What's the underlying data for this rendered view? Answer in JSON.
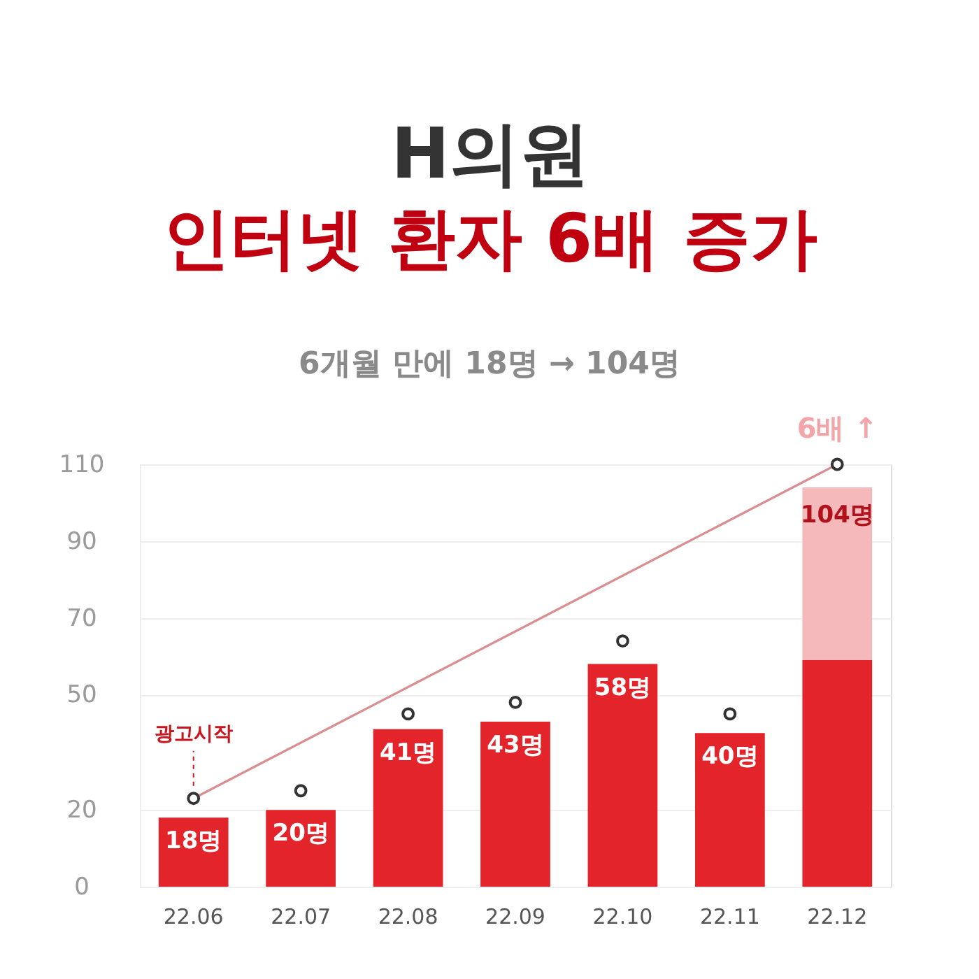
{
  "chart_data": {
    "type": "bar",
    "title": "H의원",
    "subtitle": "인터넷 환자 6배 증가",
    "categories": [
      "22.06",
      "22.07",
      "22.08",
      "22.09",
      "22.10",
      "22.11",
      "22.12"
    ],
    "stacked": true,
    "series": [
      {
        "color": "#e3242b",
        "values": [
          18,
          20,
          41,
          43,
          58,
          40,
          59
        ],
        "value_labels": [
          "18명",
          "20명",
          "41명",
          "43명",
          "58명",
          "40명",
          null
        ]
      },
      {
        "color": "#f6b9bb",
        "values": [
          null,
          null,
          null,
          null,
          null,
          null,
          45
        ]
      },
      {
        "type": "line",
        "color": "#d98f92",
        "x": [
          "22.06",
          "22.12"
        ],
        "values": [
          23,
          110
        ],
        "marker": "none"
      },
      {
        "type": "scatter",
        "color": "#333333",
        "x": [
          "22.06",
          "22.07",
          "22.08",
          "22.09",
          "22.10",
          "22.11",
          "22.12"
        ],
        "values": [
          23,
          25,
          45,
          48,
          64,
          45,
          110
        ],
        "marker": "circle"
      }
    ],
    "totals": [
      null,
      null,
      null,
      null,
      null,
      null,
      "104명"
    ],
    "ylim": [
      0,
      110
    ],
    "yticks": [
      0,
      20,
      50,
      70,
      90,
      110
    ],
    "grid": "y",
    "annotations": [
      "6개월 만에 18명 → 104명",
      {
        "text": "6배 ↑",
        "x": "22.12",
        "y": 110
      },
      {
        "text": "광고시작",
        "x": "22.06",
        "y": 23
      }
    ]
  }
}
